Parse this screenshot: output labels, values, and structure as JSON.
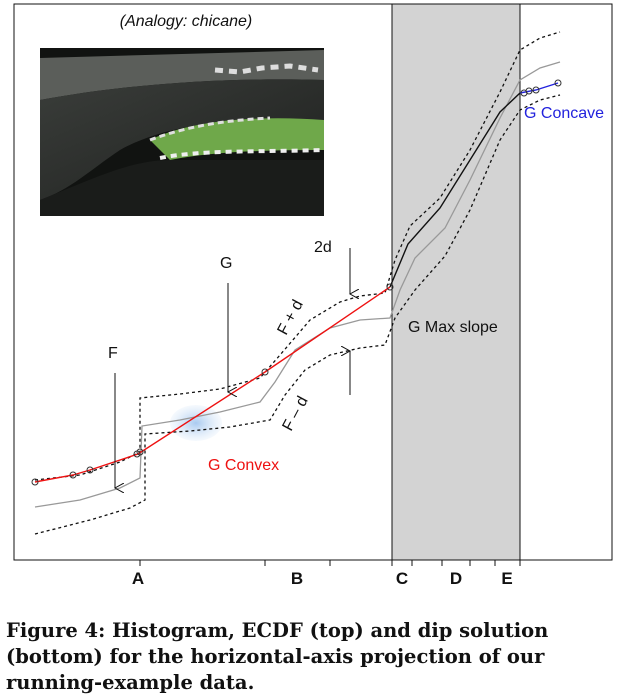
{
  "figure": {
    "analogy_label": "(Analogy: chicane)",
    "labels": {
      "F": "F",
      "G": "G",
      "two_d": "2d",
      "F_plus_d": "F + d",
      "F_minus_d": "F – d",
      "G_max_slope": "G Max slope",
      "G_convex": "G Convex",
      "G_concave": "G Concave"
    },
    "x_axis_labels": [
      "A",
      "B",
      "C",
      "D",
      "E"
    ],
    "colors": {
      "convex": "#ee1111",
      "concave": "#2222dd",
      "shade": "#d3d3d3",
      "ecdf": "#999999"
    }
  },
  "caption": "Figure 4: Histogram, ECDF (top) and dip solution (bottom) for the horizontal-axis projection of our running-example data."
}
